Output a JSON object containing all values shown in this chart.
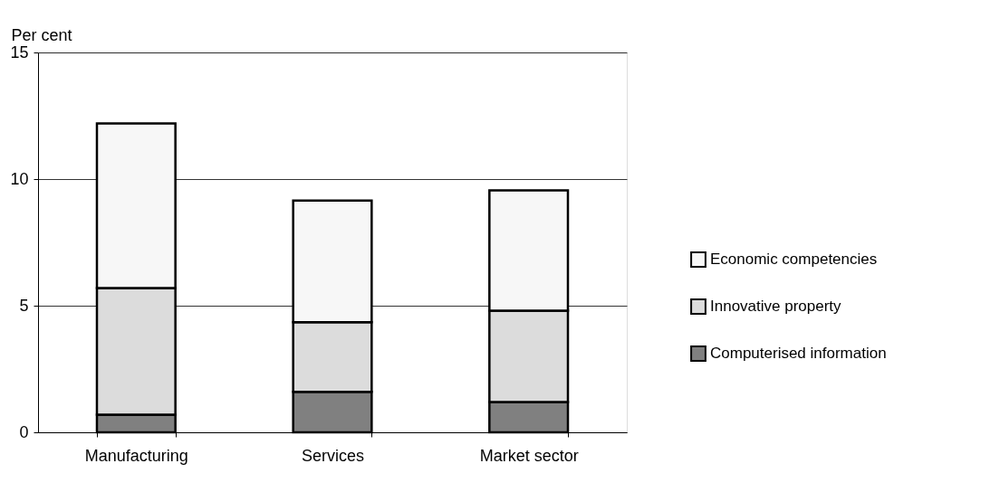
{
  "chart_data": {
    "type": "bar",
    "ylabel": "Per cent",
    "stacked": true,
    "categories": [
      "Manufacturing",
      "Services",
      "Market sector"
    ],
    "series": [
      {
        "name": "Computerised information",
        "color": "#808080",
        "values": [
          0.7,
          1.6,
          1.2
        ]
      },
      {
        "name": "Innovative property",
        "color": "#dcdcdc",
        "values": [
          5.0,
          2.75,
          3.6
        ]
      },
      {
        "name": "Economic competencies",
        "color": "#f7f7f7",
        "values": [
          6.5,
          4.8,
          4.75
        ]
      }
    ],
    "ylim": [
      0,
      15
    ],
    "yticks": [
      0,
      5,
      10,
      15
    ],
    "grid": "y",
    "legend": "right"
  }
}
